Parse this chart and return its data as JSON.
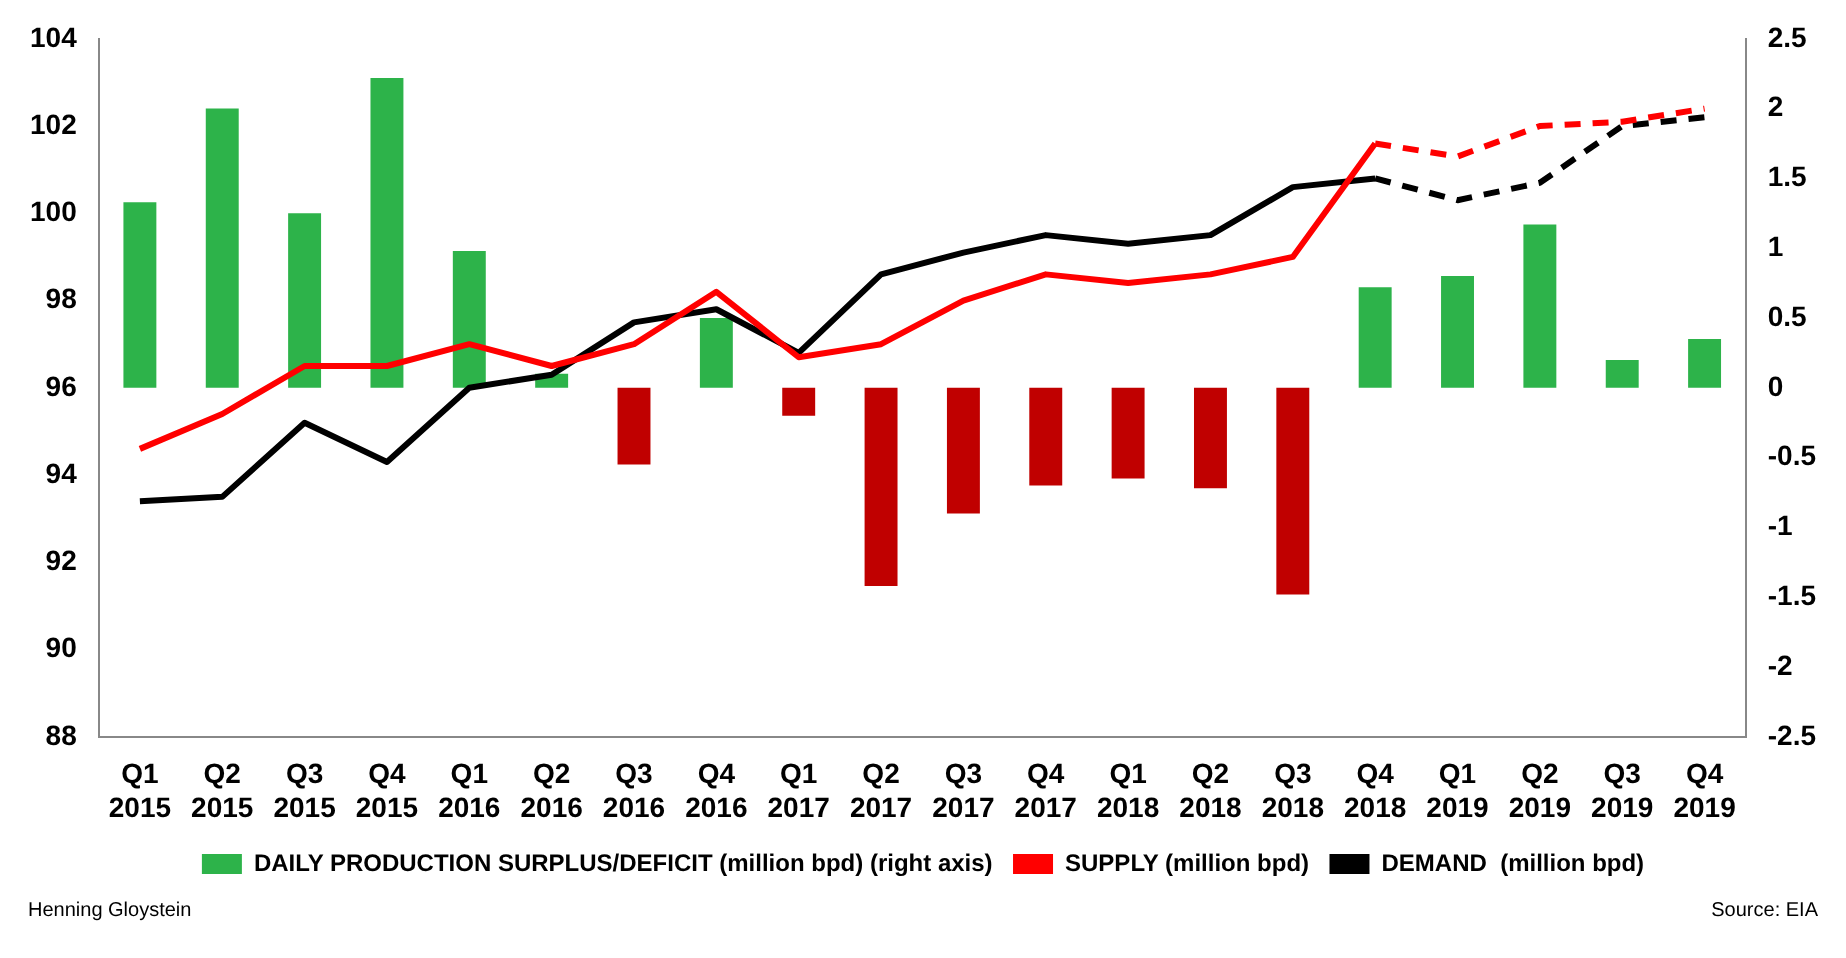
{
  "chart_data": {
    "type": "line",
    "categories": [
      "Q1 2015",
      "Q2 2015",
      "Q3 2015",
      "Q4 2015",
      "Q1 2016",
      "Q2 2016",
      "Q3 2016",
      "Q4 2016",
      "Q1 2017",
      "Q2 2017",
      "Q3 2017",
      "Q4 2017",
      "Q1 2018",
      "Q2 2018",
      "Q3 2018",
      "Q4 2018",
      "Q1 2019",
      "Q2 2019",
      "Q3 2019",
      "Q4 2019"
    ],
    "series": [
      {
        "name": "DAILY PRODUCTION SURPLUS/DEFICIT (million bpd) (right axis)",
        "type": "bar",
        "axis": "y2",
        "color": "#2db34a",
        "colors": [
          "#2db34a",
          "#2db34a",
          "#2db34a",
          "#2db34a",
          "#2db34a",
          "#2db34a",
          "#c00000",
          "#2db34a",
          "#c00000",
          "#c00000",
          "#c00000",
          "#c00000",
          "#c00000",
          "#c00000",
          "#c00000",
          "#2db34a",
          "#2db34a",
          "#2db34a",
          "#2db34a",
          "#2db34a"
        ],
        "values": [
          1.33,
          2.0,
          1.25,
          2.22,
          0.98,
          0.1,
          -0.55,
          0.5,
          -0.2,
          -1.42,
          -0.9,
          -0.7,
          -0.65,
          -0.72,
          -1.48,
          0.72,
          0.8,
          1.17,
          0.2,
          0.35
        ]
      },
      {
        "name": "SUPPLY (million bpd)",
        "color": "#ff0000",
        "line_style": "solid",
        "values": [
          94.6,
          95.4,
          96.5,
          96.5,
          97.0,
          96.5,
          97.0,
          98.2,
          96.7,
          97.0,
          98.0,
          98.6,
          98.4,
          98.6,
          99.0,
          101.6,
          null,
          null,
          null,
          null
        ]
      },
      {
        "name": "DEMAND  (million bpd)",
        "color": "#000000",
        "line_style": "solid",
        "values": [
          93.4,
          93.5,
          95.2,
          94.3,
          96.0,
          96.3,
          97.5,
          97.8,
          96.8,
          98.6,
          99.1,
          99.5,
          99.3,
          99.5,
          100.6,
          100.8,
          null,
          null,
          null,
          null
        ]
      },
      {
        "color": "#ff0000",
        "line_style": "dashed",
        "values": [
          null,
          null,
          null,
          null,
          null,
          null,
          null,
          null,
          null,
          null,
          null,
          null,
          null,
          null,
          null,
          101.6,
          101.3,
          102.0,
          102.1,
          102.4
        ]
      },
      {
        "color": "#000000",
        "line_style": "dashed",
        "values": [
          null,
          null,
          null,
          null,
          null,
          null,
          null,
          null,
          null,
          null,
          null,
          null,
          null,
          null,
          null,
          100.8,
          100.3,
          100.7,
          102.0,
          102.2
        ]
      }
    ],
    "ylim": [
      88,
      104
    ],
    "yticks": [
      88,
      90,
      92,
      94,
      96,
      98,
      100,
      102,
      104
    ],
    "y2lim": [
      -2.5,
      2.5
    ],
    "y2ticks": [
      -2.5,
      -2,
      -1.5,
      -1,
      -0.5,
      0,
      0.5,
      1,
      1.5,
      2,
      2.5
    ],
    "grid": false,
    "legend": "bottom",
    "marker": "none",
    "annotations": [
      "Henning Gloystein",
      "Source: EIA"
    ]
  }
}
